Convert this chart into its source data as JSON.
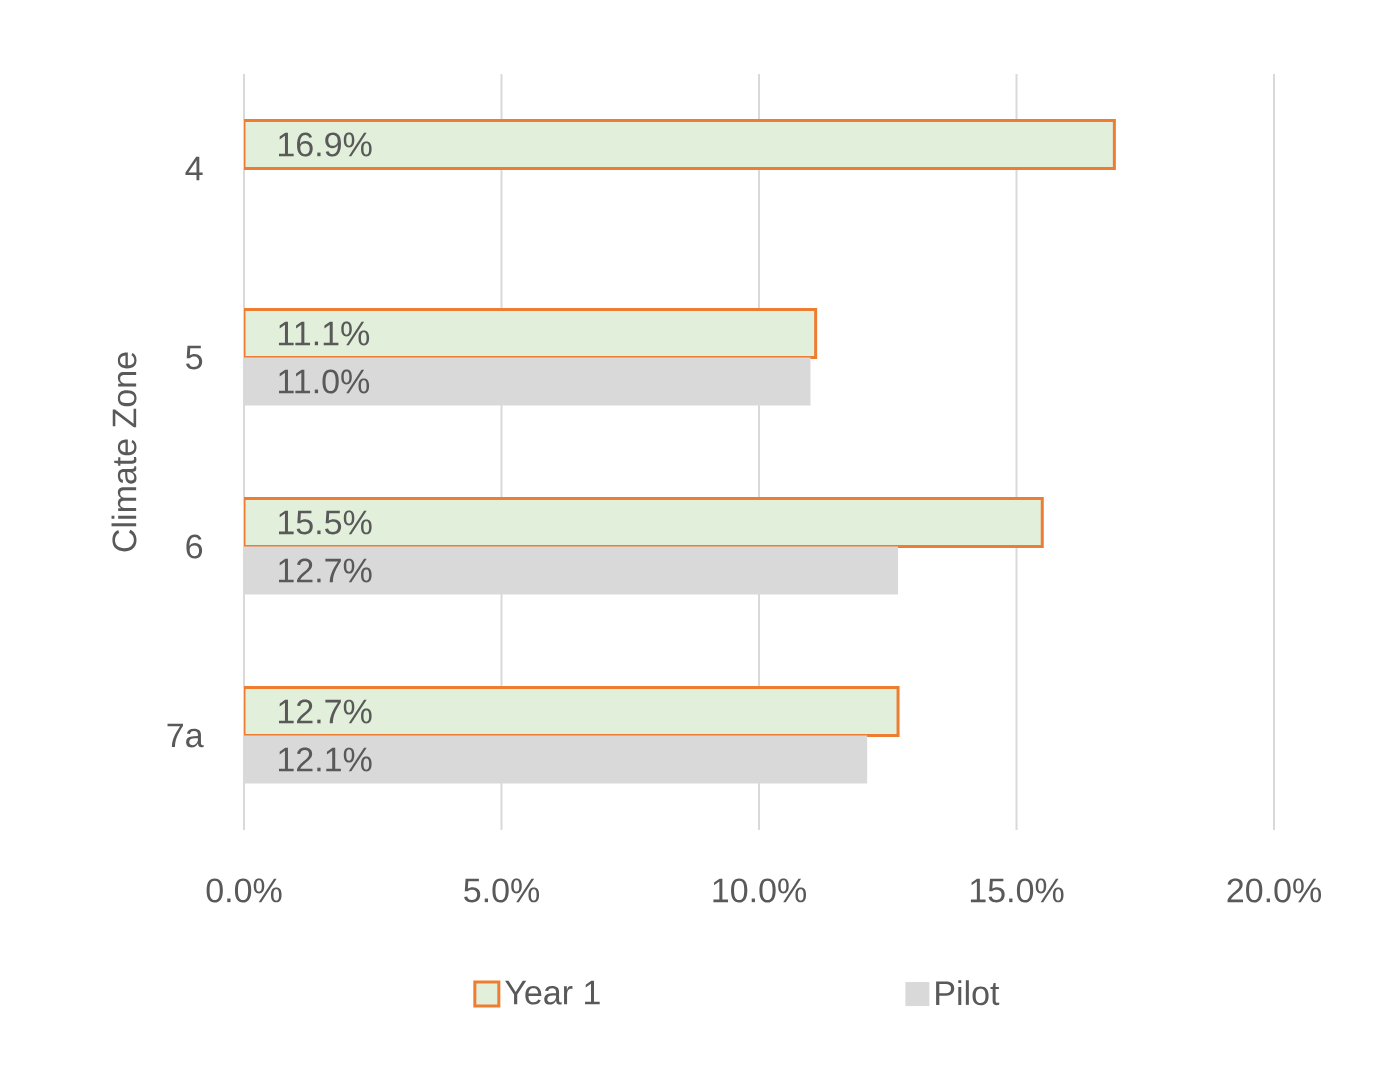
{
  "chart_data": {
    "type": "bar",
    "orientation": "horizontal",
    "ylabel": "Climate Zone",
    "categories": [
      "4",
      "5",
      "6",
      "7a"
    ],
    "series": [
      {
        "name": "Year 1",
        "color": "#e2efda",
        "values": [
          16.9,
          11.1,
          15.5,
          12.7
        ],
        "value_labels": [
          "16.9%",
          "11.1%",
          "15.5%",
          "12.7%"
        ]
      },
      {
        "name": "Pilot",
        "color": "#d9d9d9",
        "values": [
          null,
          11.0,
          12.7,
          12.1
        ],
        "value_labels": [
          null,
          "11.0%",
          "12.7%",
          "12.1%"
        ]
      }
    ],
    "xlim": [
      0,
      20
    ],
    "xticks": [
      {
        "value": 0,
        "label": "0.0%"
      },
      {
        "value": 5,
        "label": "5.0%"
      },
      {
        "value": 10,
        "label": "10.0%"
      },
      {
        "value": 15,
        "label": "15.0%"
      },
      {
        "value": 20,
        "label": "20.0%"
      }
    ],
    "grid": "x",
    "legend": "bottom"
  }
}
